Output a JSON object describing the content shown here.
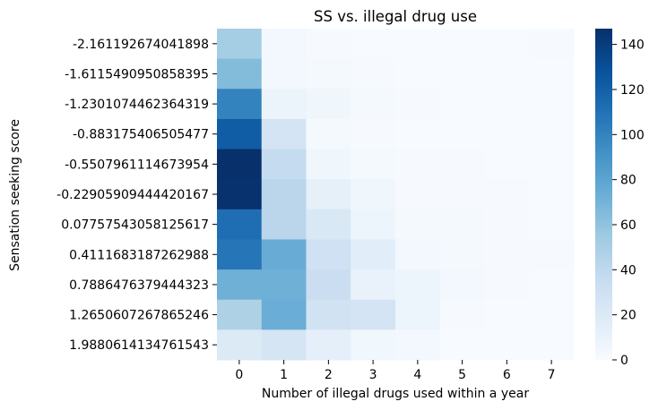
{
  "chart_data": {
    "type": "heatmap",
    "title": "SS vs. illegal drug use",
    "xlabel": "Number of illegal drugs used within a year",
    "ylabel": "Sensation seeking score",
    "x_categories": [
      "0",
      "1",
      "2",
      "3",
      "4",
      "5",
      "6",
      "7"
    ],
    "y_categories": [
      "-2.161192674041898",
      "-1.6115490950858395",
      "-1.2301074462364319",
      "-0.883175406505477",
      "-0.5507961114673954",
      "-0.22905909444420167",
      "0.07757543058125617",
      "0.4111683187262988",
      "0.7886476379444323",
      "1.2650607267865246",
      "1.9880614134761543"
    ],
    "values": [
      [
        52,
        4,
        1,
        0,
        0,
        0,
        0,
        1
      ],
      [
        65,
        4,
        2,
        1,
        0,
        0,
        0,
        0
      ],
      [
        100,
        9,
        6,
        2,
        1,
        0,
        0,
        0
      ],
      [
        122,
        26,
        2,
        1,
        0,
        0,
        0,
        0
      ],
      [
        147,
        37,
        6,
        2,
        1,
        1,
        0,
        0
      ],
      [
        146,
        42,
        13,
        6,
        1,
        1,
        1,
        0
      ],
      [
        112,
        42,
        22,
        7,
        2,
        2,
        1,
        0
      ],
      [
        108,
        75,
        30,
        16,
        3,
        2,
        1,
        1
      ],
      [
        72,
        72,
        33,
        10,
        8,
        3,
        1,
        0
      ],
      [
        48,
        74,
        28,
        26,
        8,
        1,
        0,
        0
      ],
      [
        20,
        25,
        14,
        5,
        4,
        0,
        0,
        0
      ]
    ],
    "colorbar": {
      "min": 0,
      "max": 147,
      "ticks": [
        0,
        20,
        40,
        60,
        80,
        100,
        120,
        140
      ],
      "colormap": "Blues"
    }
  }
}
